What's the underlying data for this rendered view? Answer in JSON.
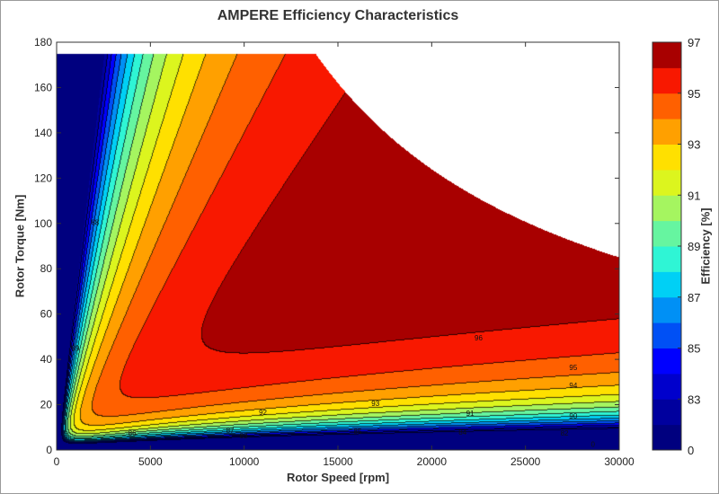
{
  "chart_data": {
    "type": "heatmap",
    "subtype": "filled-contour",
    "title": "AMPERE Efficiency Characteristics",
    "xlabel": "Rotor Speed [rpm]",
    "ylabel": "Rotor Torque [Nm]",
    "xlim": [
      0,
      30000
    ],
    "ylim": [
      0,
      180
    ],
    "xticks": [
      "0",
      "5000",
      "10000",
      "15000",
      "20000",
      "25000",
      "30000"
    ],
    "xtick_values": [
      0,
      5000,
      10000,
      15000,
      20000,
      25000,
      30000
    ],
    "yticks": [
      "0",
      "20",
      "40",
      "60",
      "80",
      "100",
      "120",
      "140",
      "160",
      "180"
    ],
    "ytick_values": [
      0,
      20,
      40,
      60,
      80,
      100,
      120,
      140,
      160,
      180
    ],
    "torque_envelope": {
      "max_torque": 175,
      "corner_speed": 13800,
      "torque_at_30000": 85
    },
    "levels": [
      0,
      82,
      83,
      84,
      85,
      86,
      87,
      88,
      89,
      90,
      91,
      92,
      93,
      94,
      95,
      96,
      97
    ],
    "band_colors": [
      "#00007f",
      "#00009e",
      "#0000cc",
      "#0000ff",
      "#0050f5",
      "#0090f5",
      "#00d0f5",
      "#2ff5d5",
      "#66f5a0",
      "#a5f560",
      "#dcf51e",
      "#ffe000",
      "#ffa000",
      "#ff6000",
      "#f81800",
      "#a80000"
    ],
    "peak_region": {
      "level": 96,
      "speed_center": 17000,
      "torque_center": 90
    },
    "contour_labels": [
      {
        "text": "96",
        "x": 22500,
        "y": 49.6
      },
      {
        "text": "95",
        "x": 27550,
        "y": 36.5
      },
      {
        "text": "94",
        "x": 27550,
        "y": 28.5
      },
      {
        "text": "93",
        "x": 17000,
        "y": 20.6
      },
      {
        "text": "92",
        "x": 11000,
        "y": 16.7
      },
      {
        "text": "91",
        "x": 22050,
        "y": 16.3
      },
      {
        "text": "90",
        "x": 27550,
        "y": 15
      },
      {
        "text": "88",
        "x": 2050,
        "y": 100.5
      },
      {
        "text": "89",
        "x": 1000,
        "y": 45
      },
      {
        "text": "87",
        "x": 9250,
        "y": 8.7
      },
      {
        "text": "86",
        "x": 4030,
        "y": 7.5
      },
      {
        "text": "85",
        "x": 16050,
        "y": 8.3
      },
      {
        "text": "84",
        "x": 21650,
        "y": 7.9
      },
      {
        "text": "83",
        "x": 9970,
        "y": 6.3
      },
      {
        "text": "82",
        "x": 27080,
        "y": 7.5
      },
      {
        "text": "0",
        "x": 28600,
        "y": 2.5
      }
    ],
    "colorbar": {
      "label": "Efficiency [%]",
      "ticks": [
        "0",
        "83",
        "85",
        "87",
        "89",
        "91",
        "93",
        "95",
        "97"
      ]
    },
    "grid": false
  }
}
